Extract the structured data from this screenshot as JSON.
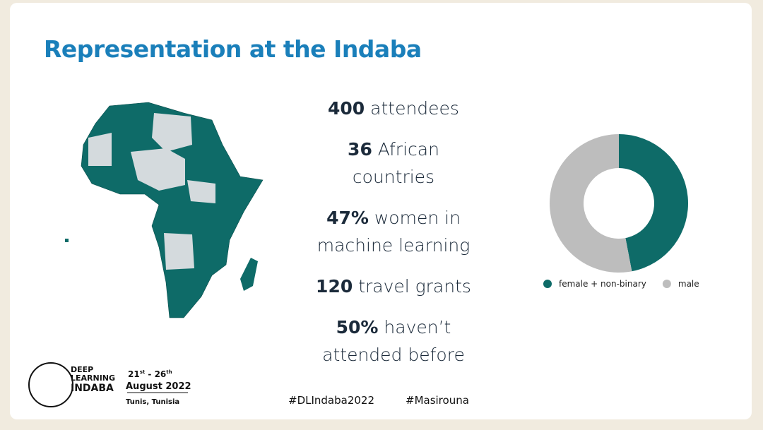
{
  "title": "Representation at the Indaba",
  "stats": [
    {
      "value": "400",
      "text": "attendees"
    },
    {
      "value": "36",
      "text": "African countries"
    },
    {
      "value": "47%",
      "text": "women in machine learning"
    },
    {
      "value": "120",
      "text": "travel grants"
    },
    {
      "value": "50%",
      "text": "haven’t attended before"
    }
  ],
  "chart_data": {
    "type": "pie",
    "categories": [
      "female + non-binary",
      "male"
    ],
    "values": [
      47,
      53
    ],
    "colors": [
      "#0e6b68",
      "#bdbdbd"
    ],
    "donut": true
  },
  "logo": {
    "line1": "DEEP",
    "line2": "LEARNING",
    "line3": "INDABA"
  },
  "event": {
    "start": "21",
    "start_suffix": "st",
    "separator": "- ",
    "end": "26",
    "end_suffix": "th",
    "month": "August 2022",
    "place": "Tunis, Tunisia"
  },
  "hashtags": [
    "#DLIndaba2022",
    "#Masirouna"
  ]
}
